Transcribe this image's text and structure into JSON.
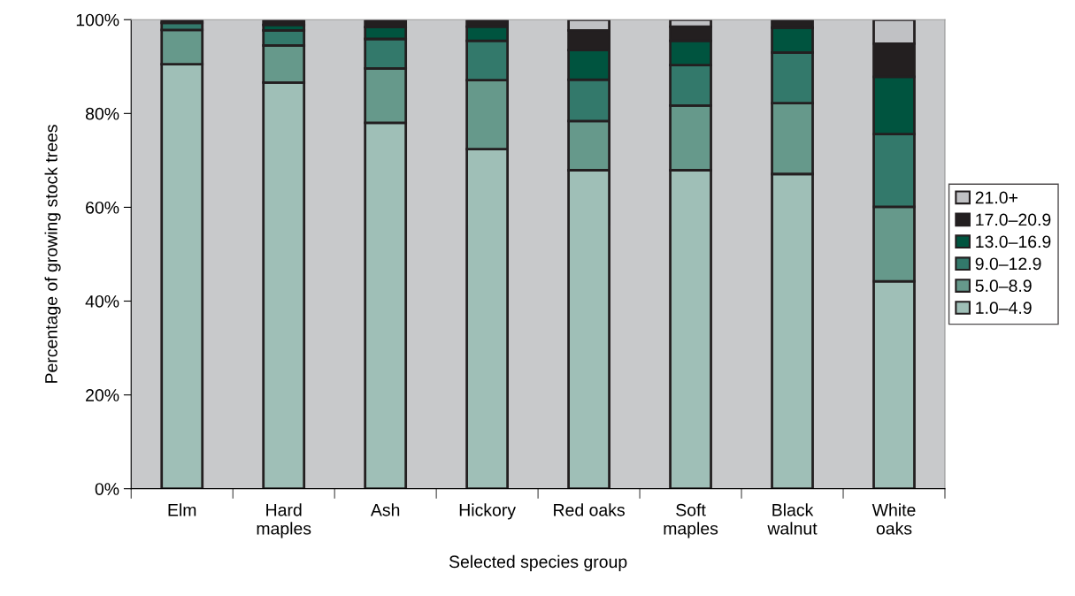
{
  "chart_data": {
    "type": "bar",
    "stacked": true,
    "xlabel": "Selected species group",
    "ylabel": "Percentage of growing stock trees",
    "categories": [
      "Elm",
      "Hard\nmaples",
      "Ash",
      "Hickory",
      "Red oaks",
      "Soft\nmaples",
      "Black\nwalnut",
      "White\noaks"
    ],
    "series": [
      {
        "name": "1.0–4.9",
        "color": "#9fbfb7",
        "values": [
          90.5,
          86.6,
          78.0,
          72.4,
          67.9,
          67.9,
          67.1,
          44.2
        ]
      },
      {
        "name": "5.0–8.9",
        "color": "#66998b",
        "values": [
          7.3,
          7.9,
          11.6,
          14.7,
          10.5,
          13.8,
          15.1,
          15.9
        ]
      },
      {
        "name": "9.0–12.9",
        "color": "#33796b",
        "values": [
          1.5,
          3.2,
          6.3,
          8.4,
          8.8,
          8.6,
          10.8,
          15.5
        ]
      },
      {
        "name": "13.0–16.9",
        "color": "#00543f",
        "values": [
          0,
          1.2,
          2.5,
          3.0,
          6.3,
          5.2,
          5.3,
          12.2
        ]
      },
      {
        "name": "17.0–20.9",
        "color": "#231f20",
        "values": [
          0.7,
          1.1,
          1.6,
          1.5,
          4.2,
          3.0,
          1.7,
          7.1
        ]
      },
      {
        "name": "21.0+",
        "color": "#c0c1c4",
        "values": [
          0,
          0,
          0,
          0,
          2.3,
          1.5,
          0,
          5.1
        ]
      }
    ],
    "ylim": [
      0,
      100
    ],
    "yticks": [
      {
        "value": 0,
        "label": "0%"
      },
      {
        "value": 20,
        "label": "20%"
      },
      {
        "value": 40,
        "label": "40%"
      },
      {
        "value": 60,
        "label": "60%"
      },
      {
        "value": 80,
        "label": "80%"
      },
      {
        "value": 100,
        "label": "100%"
      }
    ],
    "grid": false,
    "legend": "right"
  }
}
